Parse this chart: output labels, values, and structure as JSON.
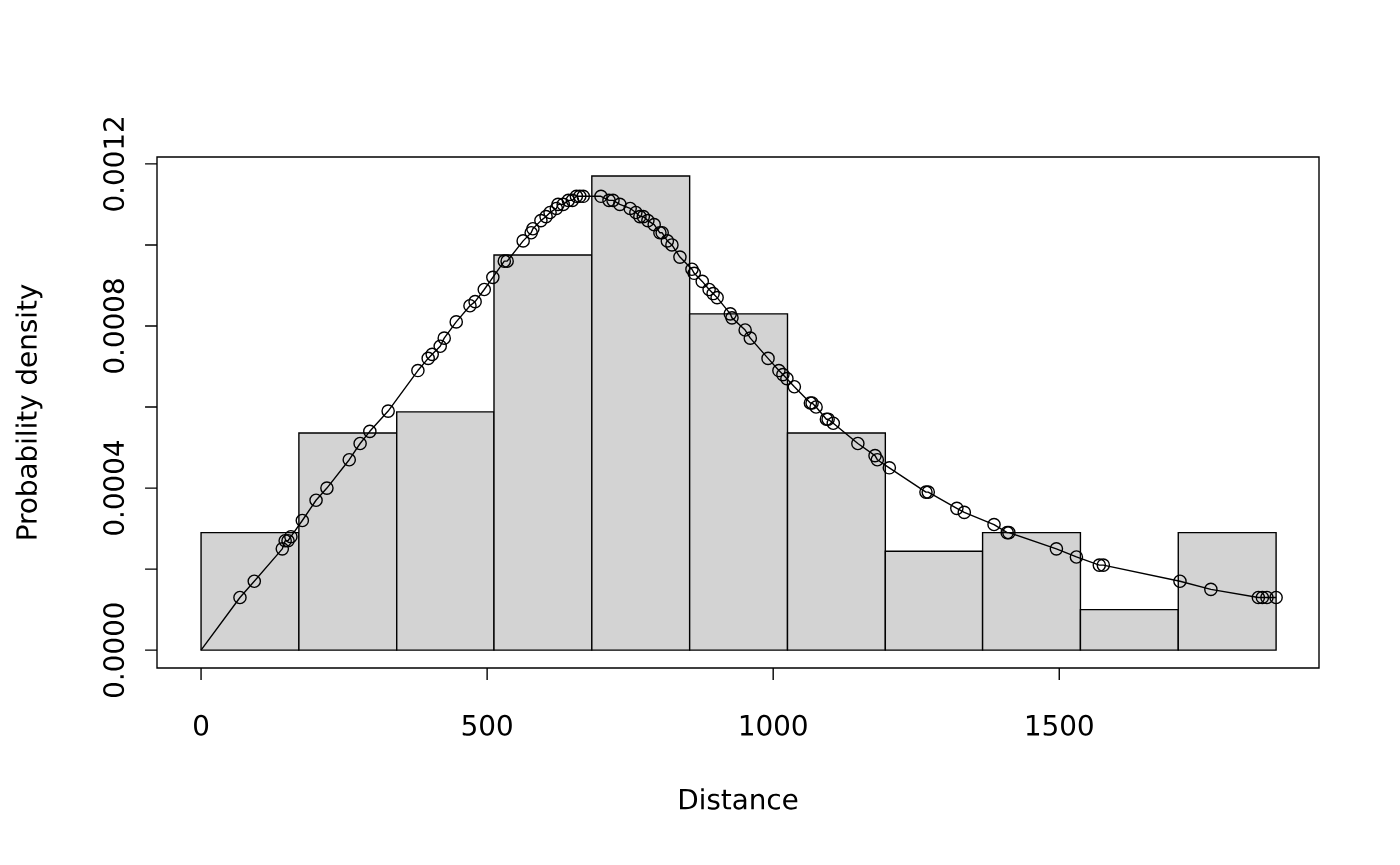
{
  "chart_data": {
    "type": "histogram",
    "xlabel": "Distance",
    "ylabel": "Probability density",
    "xlim": [
      -77,
      1954
    ],
    "ylim": [
      -4.4e-05,
      0.001217
    ],
    "xticks": [
      0,
      500,
      1000,
      1500
    ],
    "yticks": [
      {
        "value": 0,
        "label": "0.0000"
      },
      {
        "value": 0.0002,
        "label": null
      },
      {
        "value": 0.0004,
        "label": "0.0004"
      },
      {
        "value": 0.0006,
        "label": null
      },
      {
        "value": 0.0008,
        "label": "0.0008"
      },
      {
        "value": 0.001,
        "label": null
      },
      {
        "value": 0.0012,
        "label": "0.0012"
      }
    ],
    "series": [
      {
        "type": "histogram",
        "color": "#d3d3d3",
        "bins": [
          0,
          171,
          342,
          512,
          683,
          854,
          1025,
          1196,
          1366,
          1537,
          1708,
          1879
        ],
        "values": [
          0.00029,
          0.000536,
          0.000588,
          0.000975,
          0.00117,
          0.00083,
          0.000536,
          0.000244,
          0.00029,
          0.0001,
          0.00029
        ]
      },
      {
        "type": "line",
        "color": "#000000",
        "x": [
          0,
          68,
          93,
          142,
          147,
          152,
          157,
          177,
          201,
          220,
          259,
          278,
          295,
          327,
          379,
          397,
          404,
          418,
          425,
          446,
          470,
          479,
          495,
          510,
          530,
          535,
          563,
          577,
          580,
          594,
          603,
          610,
          621,
          624,
          633,
          642,
          649,
          656,
          662,
          668,
          699,
          713,
          720,
          732,
          750,
          760,
          767,
          773,
          781,
          792,
          802,
          806,
          815,
          823,
          837,
          858,
          862,
          876,
          888,
          895,
          902,
          925,
          928,
          951,
          960,
          991,
          1010,
          1017,
          1024,
          1037,
          1065,
          1068,
          1075,
          1093,
          1096,
          1105,
          1148,
          1178,
          1182,
          1203,
          1267,
          1271,
          1321,
          1334,
          1386,
          1409,
          1412,
          1495,
          1530,
          1570,
          1577,
          1711,
          1765,
          1848,
          1855,
          1863,
          1879
        ],
        "values": [
          0,
          0.00013,
          0.00017,
          0.00025,
          0.00027,
          0.00027,
          0.00028,
          0.00032,
          0.00037,
          0.0004,
          0.00047,
          0.00051,
          0.00054,
          0.00059,
          0.00069,
          0.00072,
          0.00073,
          0.00075,
          0.00077,
          0.00081,
          0.00085,
          0.00086,
          0.00089,
          0.00092,
          0.00096,
          0.00096,
          0.00101,
          0.00103,
          0.00104,
          0.00106,
          0.00107,
          0.00108,
          0.00109,
          0.0011,
          0.0011,
          0.00111,
          0.00111,
          0.00112,
          0.00112,
          0.00112,
          0.00112,
          0.00111,
          0.00111,
          0.0011,
          0.00109,
          0.00108,
          0.00107,
          0.00107,
          0.00106,
          0.00105,
          0.00103,
          0.00103,
          0.00101,
          0.001,
          0.00097,
          0.00094,
          0.00093,
          0.00091,
          0.00089,
          0.00088,
          0.00087,
          0.00083,
          0.00082,
          0.00079,
          0.00077,
          0.00072,
          0.00069,
          0.00068,
          0.00067,
          0.00065,
          0.00061,
          0.00061,
          0.0006,
          0.00057,
          0.00057,
          0.00056,
          0.00051,
          0.00048,
          0.00047,
          0.00045,
          0.00039,
          0.00039,
          0.00035,
          0.00034,
          0.00031,
          0.00029,
          0.00029,
          0.00025,
          0.00023,
          0.00021,
          0.00021,
          0.00017,
          0.00015,
          0.00013,
          0.00013,
          0.00013,
          0.00013
        ]
      },
      {
        "type": "scatter",
        "color": "#000000",
        "marker": "circle",
        "x": [
          68,
          93,
          142,
          147,
          152,
          157,
          177,
          201,
          220,
          259,
          278,
          295,
          327,
          379,
          397,
          404,
          418,
          425,
          446,
          470,
          479,
          495,
          510,
          530,
          535,
          563,
          577,
          580,
          594,
          603,
          610,
          621,
          624,
          633,
          642,
          649,
          656,
          662,
          668,
          699,
          713,
          720,
          732,
          750,
          760,
          767,
          773,
          781,
          792,
          802,
          806,
          815,
          823,
          837,
          858,
          862,
          876,
          888,
          895,
          902,
          925,
          928,
          951,
          960,
          991,
          1010,
          1017,
          1024,
          1037,
          1065,
          1068,
          1075,
          1093,
          1096,
          1105,
          1148,
          1178,
          1182,
          1203,
          1267,
          1271,
          1321,
          1334,
          1386,
          1409,
          1412,
          1495,
          1530,
          1570,
          1577,
          1711,
          1765,
          1848,
          1855,
          1863,
          1879
        ],
        "values": [
          0.00013,
          0.00017,
          0.00025,
          0.00027,
          0.00027,
          0.00028,
          0.00032,
          0.00037,
          0.0004,
          0.00047,
          0.00051,
          0.00054,
          0.00059,
          0.00069,
          0.00072,
          0.00073,
          0.00075,
          0.00077,
          0.00081,
          0.00085,
          0.00086,
          0.00089,
          0.00092,
          0.00096,
          0.00096,
          0.00101,
          0.00103,
          0.00104,
          0.00106,
          0.00107,
          0.00108,
          0.00109,
          0.0011,
          0.0011,
          0.00111,
          0.00111,
          0.00112,
          0.00112,
          0.00112,
          0.00112,
          0.00111,
          0.00111,
          0.0011,
          0.00109,
          0.00108,
          0.00107,
          0.00107,
          0.00106,
          0.00105,
          0.00103,
          0.00103,
          0.00101,
          0.001,
          0.00097,
          0.00094,
          0.00093,
          0.00091,
          0.00089,
          0.00088,
          0.00087,
          0.00083,
          0.00082,
          0.00079,
          0.00077,
          0.00072,
          0.00069,
          0.00068,
          0.00067,
          0.00065,
          0.00061,
          0.00061,
          0.0006,
          0.00057,
          0.00057,
          0.00056,
          0.00051,
          0.00048,
          0.00047,
          0.00045,
          0.00039,
          0.00039,
          0.00035,
          0.00034,
          0.00031,
          0.00029,
          0.00029,
          0.00025,
          0.00023,
          0.00021,
          0.00021,
          0.00017,
          0.00015,
          0.00013,
          0.00013,
          0.00013,
          0.00013
        ]
      }
    ]
  }
}
